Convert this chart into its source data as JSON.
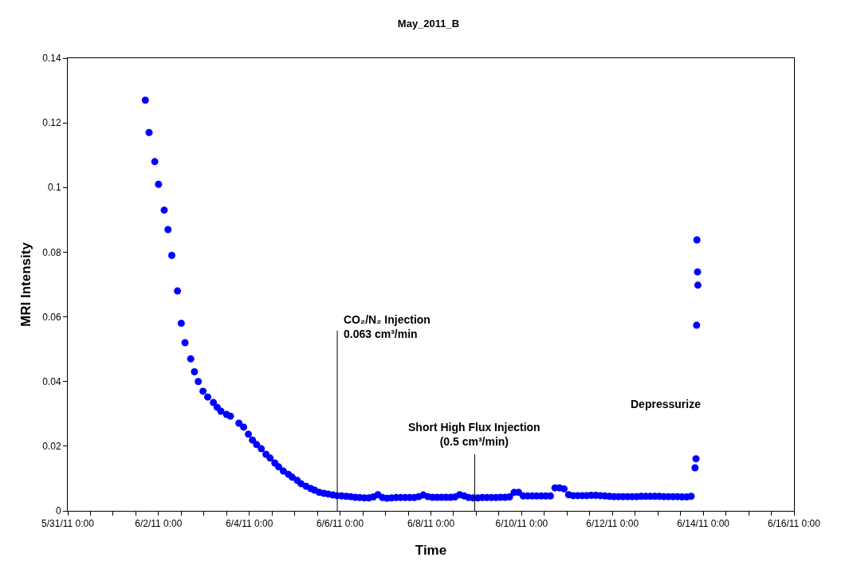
{
  "chart_data": {
    "type": "scatter",
    "title": "May_2011_B",
    "xlabel": "Time",
    "ylabel": "MRI Intensity",
    "x": [
      "2011-06-01T17:00",
      "2011-06-01T19:00",
      "2011-06-01T22:00",
      "2011-06-02T00:00",
      "2011-06-02T03:00",
      "2011-06-02T05:00",
      "2011-06-02T07:00",
      "2011-06-02T10:00",
      "2011-06-02T12:00",
      "2011-06-02T14:00",
      "2011-06-02T17:00",
      "2011-06-02T19:00",
      "2011-06-02T21:00",
      "2011-06-02T23:30",
      "2011-06-03T02:00",
      "2011-06-03T05:00",
      "2011-06-03T07:00",
      "2011-06-03T09:00",
      "2011-06-03T12:00",
      "2011-06-03T14:00",
      "2011-06-03T18:30",
      "2011-06-03T21:00",
      "2011-06-03T23:30",
      "2011-06-04T01:40",
      "2011-06-04T03:50",
      "2011-06-04T06:20",
      "2011-06-04T08:50",
      "2011-06-04T11:00",
      "2011-06-04T13:30",
      "2011-06-04T15:30",
      "2011-06-04T18:00",
      "2011-06-04T20:40",
      "2011-06-04T22:40",
      "2011-06-05T01:20",
      "2011-06-05T03:20",
      "2011-06-05T06:00",
      "2011-06-05T08:30",
      "2011-06-05T10:30",
      "2011-06-05T13:00",
      "2011-06-05T15:30",
      "2011-06-05T17:40",
      "2011-06-05T20:10",
      "2011-06-05T22:20",
      "2011-06-06T00:48",
      "2011-06-06T03:12",
      "2011-06-06T05:36",
      "2011-06-06T08:00",
      "2011-06-06T10:24",
      "2011-06-06T12:48",
      "2011-06-06T15:12",
      "2011-06-06T17:36",
      "2011-06-06T20:00",
      "2011-06-06T22:24",
      "2011-06-07T00:48",
      "2011-06-07T03:12",
      "2011-06-07T05:36",
      "2011-06-07T08:00",
      "2011-06-07T10:24",
      "2011-06-07T12:48",
      "2011-06-07T15:12",
      "2011-06-07T17:36",
      "2011-06-07T20:00",
      "2011-06-07T22:24",
      "2011-06-08T00:48",
      "2011-06-08T03:12",
      "2011-06-08T05:36",
      "2011-06-08T08:00",
      "2011-06-08T10:24",
      "2011-06-08T12:48",
      "2011-06-08T15:12",
      "2011-06-08T17:36",
      "2011-06-08T20:00",
      "2011-06-08T22:24",
      "2011-06-09T00:48",
      "2011-06-09T03:12",
      "2011-06-09T05:36",
      "2011-06-09T08:00",
      "2011-06-09T10:24",
      "2011-06-09T12:48",
      "2011-06-09T15:12",
      "2011-06-09T17:36",
      "2011-06-09T20:00",
      "2011-06-09T22:24",
      "2011-06-10T00:48",
      "2011-06-10T03:12",
      "2011-06-10T05:36",
      "2011-06-10T08:00",
      "2011-06-10T10:24",
      "2011-06-10T12:48",
      "2011-06-10T15:12",
      "2011-06-10T17:36",
      "2011-06-10T20:00",
      "2011-06-10T22:24",
      "2011-06-11T00:48",
      "2011-06-11T03:12",
      "2011-06-11T05:36",
      "2011-06-11T08:00",
      "2011-06-11T10:24",
      "2011-06-11T12:48",
      "2011-06-11T15:12",
      "2011-06-11T17:36",
      "2011-06-11T20:00",
      "2011-06-11T22:24",
      "2011-06-12T00:48",
      "2011-06-12T03:12",
      "2011-06-12T05:36",
      "2011-06-12T08:00",
      "2011-06-12T10:24",
      "2011-06-12T12:48",
      "2011-06-12T15:12",
      "2011-06-12T17:36",
      "2011-06-12T20:00",
      "2011-06-12T22:24",
      "2011-06-13T00:48",
      "2011-06-13T03:12",
      "2011-06-13T05:36",
      "2011-06-13T08:00",
      "2011-06-13T10:24",
      "2011-06-13T12:48",
      "2011-06-13T15:12",
      "2011-06-13T17:36",
      "2011-06-13T19:40",
      "2011-06-13T20:10",
      "2011-06-13T20:30",
      "2011-06-13T20:40",
      "2011-06-13T21:00",
      "2011-06-13T21:10"
    ],
    "series": [
      {
        "color": "#0000ff",
        "values": [
          0.127,
          0.117,
          0.108,
          0.101,
          0.093,
          0.087,
          0.079,
          0.068,
          0.058,
          0.052,
          0.047,
          0.043,
          0.04,
          0.037,
          0.0352,
          0.0335,
          0.032,
          0.0308,
          0.0298,
          0.0293,
          0.0271,
          0.0259,
          0.0237,
          0.0219,
          0.0205,
          0.0192,
          0.0175,
          0.0163,
          0.0148,
          0.0136,
          0.0123,
          0.0113,
          0.0104,
          0.0094,
          0.0084,
          0.0076,
          0.0069,
          0.0064,
          0.0057,
          0.0054,
          0.0052,
          0.0049,
          0.0047,
          0.0046,
          0.0045,
          0.0044,
          0.0042,
          0.0041,
          0.004,
          0.004,
          0.0043,
          0.005,
          0.0041,
          0.0039,
          0.004,
          0.0041,
          0.0041,
          0.0041,
          0.0041,
          0.0041,
          0.0044,
          0.0049,
          0.0044,
          0.0042,
          0.0042,
          0.0042,
          0.0042,
          0.0042,
          0.0043,
          0.005,
          0.0046,
          0.0041,
          0.004,
          0.004,
          0.0041,
          0.0041,
          0.0041,
          0.0041,
          0.0042,
          0.0042,
          0.0043,
          0.0057,
          0.0057,
          0.0046,
          0.0046,
          0.0046,
          0.0046,
          0.0046,
          0.0046,
          0.0046,
          0.0071,
          0.0071,
          0.0068,
          0.005,
          0.0047,
          0.0047,
          0.0047,
          0.0047,
          0.0048,
          0.0048,
          0.0047,
          0.0046,
          0.0045,
          0.0044,
          0.0044,
          0.0044,
          0.0044,
          0.0044,
          0.0044,
          0.0045,
          0.0045,
          0.0045,
          0.0045,
          0.0045,
          0.0044,
          0.0044,
          0.0044,
          0.0044,
          0.0043,
          0.0043,
          0.0045,
          0.0133,
          0.0161,
          0.0574,
          0.0838,
          0.0739,
          0.0698
        ]
      }
    ],
    "marker": "circle",
    "xlim": [
      "2011-05-31T00:00",
      "2011-06-16T00:00"
    ],
    "xticks": [
      {
        "value": "2011-05-31T00:00",
        "label": "5/31/11 0:00"
      },
      {
        "value": "2011-05-31T12:00",
        "label": null
      },
      {
        "value": "2011-06-01T00:00",
        "label": null
      },
      {
        "value": "2011-06-01T12:00",
        "label": null
      },
      {
        "value": "2011-06-02T00:00",
        "label": "6/2/11 0:00"
      },
      {
        "value": "2011-06-02T12:00",
        "label": null
      },
      {
        "value": "2011-06-03T00:00",
        "label": null
      },
      {
        "value": "2011-06-03T12:00",
        "label": null
      },
      {
        "value": "2011-06-04T00:00",
        "label": "6/4/11 0:00"
      },
      {
        "value": "2011-06-04T12:00",
        "label": null
      },
      {
        "value": "2011-06-05T00:00",
        "label": null
      },
      {
        "value": "2011-06-05T12:00",
        "label": null
      },
      {
        "value": "2011-06-06T00:00",
        "label": "6/6/11 0:00"
      },
      {
        "value": "2011-06-06T12:00",
        "label": null
      },
      {
        "value": "2011-06-07T00:00",
        "label": null
      },
      {
        "value": "2011-06-07T12:00",
        "label": null
      },
      {
        "value": "2011-06-08T00:00",
        "label": "6/8/11 0:00"
      },
      {
        "value": "2011-06-08T12:00",
        "label": null
      },
      {
        "value": "2011-06-09T00:00",
        "label": null
      },
      {
        "value": "2011-06-09T12:00",
        "label": null
      },
      {
        "value": "2011-06-10T00:00",
        "label": "6/10/11 0:00"
      },
      {
        "value": "2011-06-10T12:00",
        "label": null
      },
      {
        "value": "2011-06-11T00:00",
        "label": null
      },
      {
        "value": "2011-06-11T12:00",
        "label": null
      },
      {
        "value": "2011-06-12T00:00",
        "label": "6/12/11 0:00"
      },
      {
        "value": "2011-06-12T12:00",
        "label": null
      },
      {
        "value": "2011-06-13T00:00",
        "label": null
      },
      {
        "value": "2011-06-13T12:00",
        "label": null
      },
      {
        "value": "2011-06-14T00:00",
        "label": "6/14/11 0:00"
      },
      {
        "value": "2011-06-14T12:00",
        "label": null
      },
      {
        "value": "2011-06-15T00:00",
        "label": null
      },
      {
        "value": "2011-06-15T12:00",
        "label": null
      },
      {
        "value": "2011-06-16T00:00",
        "label": "6/16/11 0:00"
      }
    ],
    "ylim": [
      0,
      0.14
    ],
    "yticks": [
      0,
      0.02,
      0.04,
      0.06,
      0.08,
      0.1,
      0.12,
      0.14
    ],
    "ref_lines": [
      {
        "axis": "x",
        "value": "2011-06-05T22:30",
        "label": "CO₂/N₂ Injection\n0.063 cm³/min"
      },
      {
        "axis": "x",
        "value": "2011-06-08T23:10",
        "label": "Short High Flux Injection\n(0.5 cm³/min)"
      }
    ],
    "annotations": [
      "Depressurize"
    ]
  }
}
